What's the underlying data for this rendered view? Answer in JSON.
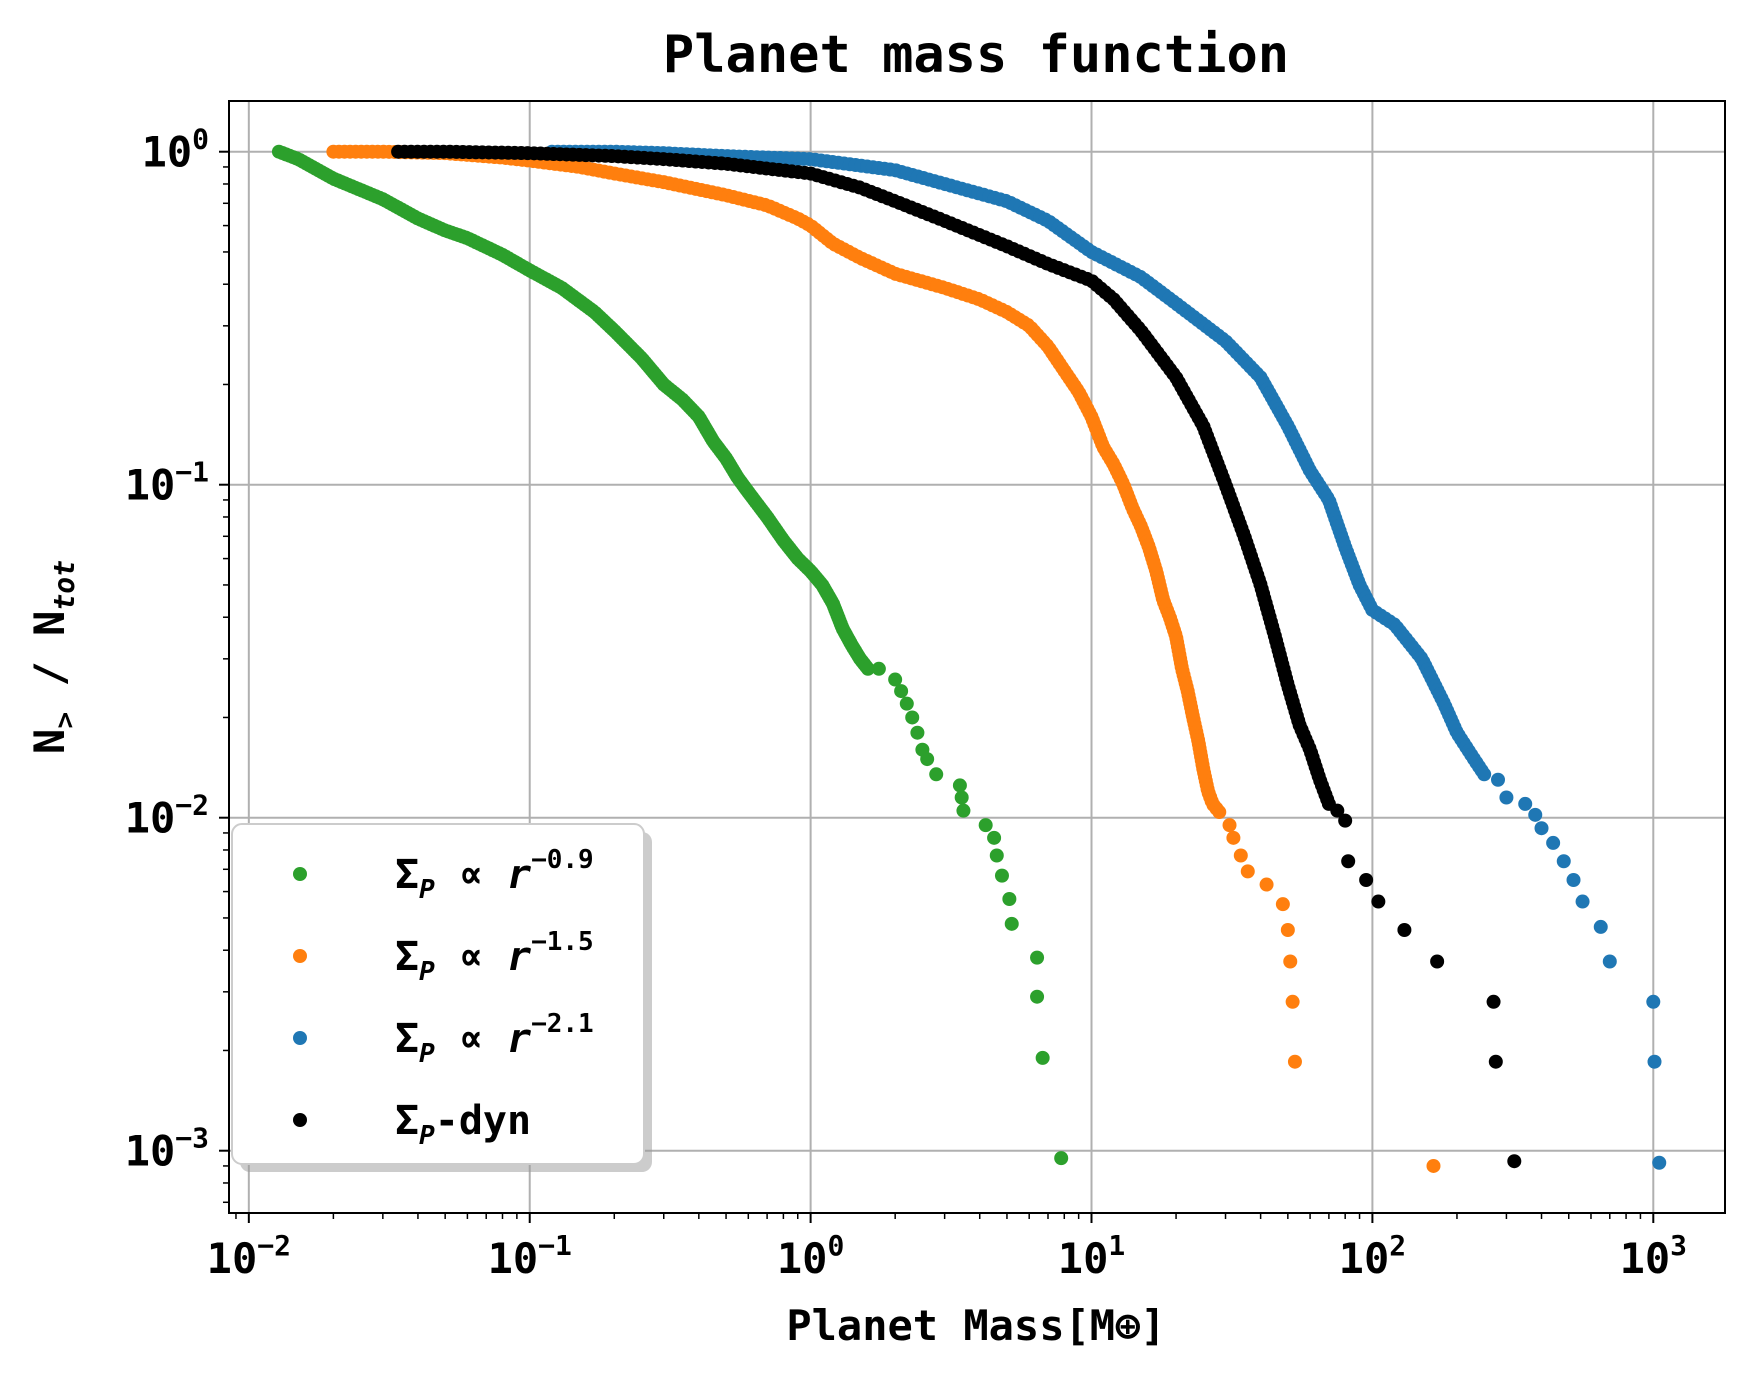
{
  "chart_data": {
    "type": "scatter",
    "title": "Planet mass function",
    "xlabel": "Planet Mass[M⊕]",
    "ylabel": "N> / Ntot",
    "ylabel_parts": {
      "main": "N",
      "sub1": ">",
      "sep": " / N",
      "sub2": "tot"
    },
    "xscale": "log",
    "yscale": "log",
    "xlim": [
      0.0085,
      1800
    ],
    "ylim": [
      0.00065,
      1.42
    ],
    "grid": true,
    "legend_position": "lower-left",
    "xticks": [
      {
        "value": 0.01,
        "base": "10",
        "exp": "−2"
      },
      {
        "value": 0.1,
        "base": "10",
        "exp": "−1"
      },
      {
        "value": 1,
        "base": "10",
        "exp": "0"
      },
      {
        "value": 10,
        "base": "10",
        "exp": "1"
      },
      {
        "value": 100,
        "base": "10",
        "exp": "2"
      },
      {
        "value": 1000,
        "base": "10",
        "exp": "3"
      }
    ],
    "yticks": [
      {
        "value": 1,
        "base": "10",
        "exp": "0"
      },
      {
        "value": 0.1,
        "base": "10",
        "exp": "−1"
      },
      {
        "value": 0.01,
        "base": "10",
        "exp": "−2"
      },
      {
        "value": 0.001,
        "base": "10",
        "exp": "−3"
      }
    ],
    "series": [
      {
        "name": "ΣP ∝ r^-0.9",
        "legend": {
          "sym": "Σ",
          "sub": "P",
          "mid": " ∝ ",
          "var": "r",
          "exp": "−0.9",
          "tail": ""
        },
        "color": "#2ca02c",
        "curve": [
          [
            0.0128,
            1.0
          ],
          [
            0.015,
            0.95
          ],
          [
            0.02,
            0.83
          ],
          [
            0.03,
            0.72
          ],
          [
            0.04,
            0.63
          ],
          [
            0.05,
            0.58
          ],
          [
            0.06,
            0.55
          ],
          [
            0.08,
            0.49
          ],
          [
            0.1,
            0.44
          ],
          [
            0.13,
            0.39
          ],
          [
            0.17,
            0.33
          ],
          [
            0.2,
            0.29
          ],
          [
            0.25,
            0.24
          ],
          [
            0.3,
            0.2
          ],
          [
            0.35,
            0.18
          ],
          [
            0.4,
            0.16
          ],
          [
            0.45,
            0.135
          ],
          [
            0.5,
            0.12
          ],
          [
            0.55,
            0.105
          ],
          [
            0.6,
            0.095
          ],
          [
            0.7,
            0.08
          ],
          [
            0.8,
            0.068
          ],
          [
            0.9,
            0.06
          ],
          [
            1.0,
            0.055
          ],
          [
            1.1,
            0.05
          ],
          [
            1.2,
            0.044
          ],
          [
            1.3,
            0.037
          ],
          [
            1.4,
            0.033
          ],
          [
            1.5,
            0.03
          ],
          [
            1.6,
            0.028
          ]
        ],
        "curve_n": 240,
        "tail": [
          [
            1.75,
            0.028
          ],
          [
            2.0,
            0.026
          ],
          [
            2.1,
            0.024
          ],
          [
            2.2,
            0.022
          ],
          [
            2.3,
            0.02
          ],
          [
            2.4,
            0.018
          ],
          [
            2.5,
            0.016
          ],
          [
            2.6,
            0.015
          ],
          [
            2.8,
            0.0135
          ],
          [
            3.4,
            0.0125
          ],
          [
            3.45,
            0.0115
          ],
          [
            3.5,
            0.0105
          ],
          [
            4.2,
            0.0095
          ],
          [
            4.5,
            0.0087
          ],
          [
            4.6,
            0.0077
          ],
          [
            4.8,
            0.0067
          ],
          [
            5.1,
            0.0057
          ],
          [
            5.2,
            0.0048
          ],
          [
            6.4,
            0.0038
          ],
          [
            6.4,
            0.0029
          ],
          [
            6.7,
            0.0019
          ],
          [
            7.8,
            0.00095
          ]
        ]
      },
      {
        "name": "ΣP ∝ r^-1.5",
        "legend": {
          "sym": "Σ",
          "sub": "P",
          "mid": " ∝ ",
          "var": "r",
          "exp": "−1.5",
          "tail": ""
        },
        "color": "#ff7f0e",
        "curve": [
          [
            0.02,
            1.0
          ],
          [
            0.03,
            1.0
          ],
          [
            0.05,
            0.99
          ],
          [
            0.08,
            0.96
          ],
          [
            0.1,
            0.94
          ],
          [
            0.15,
            0.9
          ],
          [
            0.2,
            0.86
          ],
          [
            0.3,
            0.81
          ],
          [
            0.5,
            0.74
          ],
          [
            0.7,
            0.69
          ],
          [
            0.9,
            0.63
          ],
          [
            1.0,
            0.6
          ],
          [
            1.2,
            0.53
          ],
          [
            1.5,
            0.48
          ],
          [
            2.0,
            0.43
          ],
          [
            3.0,
            0.39
          ],
          [
            4.0,
            0.36
          ],
          [
            5.0,
            0.33
          ],
          [
            6.0,
            0.3
          ],
          [
            7.0,
            0.26
          ],
          [
            8.0,
            0.22
          ],
          [
            9.0,
            0.19
          ],
          [
            10.0,
            0.16
          ],
          [
            11.0,
            0.13
          ],
          [
            12.0,
            0.115
          ],
          [
            13.0,
            0.1
          ],
          [
            14.0,
            0.085
          ],
          [
            15.0,
            0.075
          ],
          [
            16.0,
            0.065
          ],
          [
            17.0,
            0.055
          ],
          [
            18.0,
            0.045
          ],
          [
            19.0,
            0.04
          ],
          [
            20.0,
            0.035
          ],
          [
            21.0,
            0.028
          ],
          [
            22.0,
            0.024
          ],
          [
            23.0,
            0.02
          ],
          [
            24.0,
            0.017
          ],
          [
            25.0,
            0.014
          ],
          [
            26.0,
            0.012
          ],
          [
            27.0,
            0.011
          ],
          [
            28.5,
            0.0104
          ]
        ],
        "curve_n": 260,
        "tail": [
          [
            31,
            0.0095
          ],
          [
            32,
            0.0087
          ],
          [
            34,
            0.0077
          ],
          [
            36,
            0.0069
          ],
          [
            42,
            0.0063
          ],
          [
            48,
            0.0055
          ],
          [
            50,
            0.0046
          ],
          [
            51,
            0.0037
          ],
          [
            52,
            0.0028
          ],
          [
            53,
            0.00185
          ],
          [
            165,
            0.0009
          ]
        ]
      },
      {
        "name": "ΣP ∝ r^-2.1",
        "legend": {
          "sym": "Σ",
          "sub": "P",
          "mid": " ∝ ",
          "var": "r",
          "exp": "−2.1",
          "tail": ""
        },
        "color": "#1f77b4",
        "curve": [
          [
            0.12,
            1.0
          ],
          [
            0.2,
            1.0
          ],
          [
            0.3,
            0.99
          ],
          [
            0.5,
            0.97
          ],
          [
            1.0,
            0.95
          ],
          [
            2.0,
            0.88
          ],
          [
            3.0,
            0.8
          ],
          [
            5.0,
            0.71
          ],
          [
            7.0,
            0.62
          ],
          [
            10.0,
            0.5
          ],
          [
            15.0,
            0.42
          ],
          [
            20.0,
            0.35
          ],
          [
            30.0,
            0.27
          ],
          [
            40.0,
            0.21
          ],
          [
            50.0,
            0.15
          ],
          [
            60.0,
            0.11
          ],
          [
            70.0,
            0.09
          ],
          [
            80.0,
            0.065
          ],
          [
            90.0,
            0.05
          ],
          [
            100.0,
            0.042
          ],
          [
            120.0,
            0.038
          ],
          [
            150.0,
            0.03
          ],
          [
            180.0,
            0.022
          ],
          [
            200.0,
            0.018
          ],
          [
            230.0,
            0.015
          ],
          [
            250.0,
            0.0135
          ]
        ],
        "curve_n": 240,
        "tail": [
          [
            280,
            0.013
          ],
          [
            300,
            0.0115
          ],
          [
            350,
            0.011
          ],
          [
            380,
            0.0102
          ],
          [
            400,
            0.0093
          ],
          [
            440,
            0.0084
          ],
          [
            480,
            0.0074
          ],
          [
            520,
            0.0065
          ],
          [
            560,
            0.0056
          ],
          [
            650,
            0.0047
          ],
          [
            700,
            0.0037
          ],
          [
            1000,
            0.0028
          ],
          [
            1010,
            0.00185
          ],
          [
            1050,
            0.00092
          ]
        ]
      },
      {
        "name": "ΣP-dyn",
        "legend": {
          "sym": "Σ",
          "sub": "P",
          "mid": "",
          "var": "",
          "exp": "",
          "tail": "-dyn"
        },
        "color": "#000000",
        "curve": [
          [
            0.034,
            1.0
          ],
          [
            0.05,
            1.0
          ],
          [
            0.1,
            0.99
          ],
          [
            0.2,
            0.97
          ],
          [
            0.3,
            0.95
          ],
          [
            0.5,
            0.92
          ],
          [
            0.7,
            0.89
          ],
          [
            1.0,
            0.86
          ],
          [
            1.5,
            0.78
          ],
          [
            2.0,
            0.71
          ],
          [
            3.0,
            0.62
          ],
          [
            5.0,
            0.52
          ],
          [
            7.0,
            0.46
          ],
          [
            10.0,
            0.41
          ],
          [
            12.0,
            0.36
          ],
          [
            15.0,
            0.29
          ],
          [
            20.0,
            0.21
          ],
          [
            25.0,
            0.15
          ],
          [
            30.0,
            0.1
          ],
          [
            35.0,
            0.07
          ],
          [
            40.0,
            0.05
          ],
          [
            45.0,
            0.035
          ],
          [
            50.0,
            0.025
          ],
          [
            55.0,
            0.019
          ],
          [
            60.0,
            0.016
          ],
          [
            65.0,
            0.013
          ],
          [
            70.0,
            0.011
          ]
        ],
        "curve_n": 230,
        "tail": [
          [
            75,
            0.0105
          ],
          [
            80,
            0.0098
          ],
          [
            82,
            0.0074
          ],
          [
            95,
            0.0065
          ],
          [
            105,
            0.0056
          ],
          [
            130,
            0.0046
          ],
          [
            170,
            0.0037
          ],
          [
            270,
            0.0028
          ],
          [
            275,
            0.00185
          ],
          [
            320,
            0.00093
          ]
        ]
      }
    ]
  }
}
